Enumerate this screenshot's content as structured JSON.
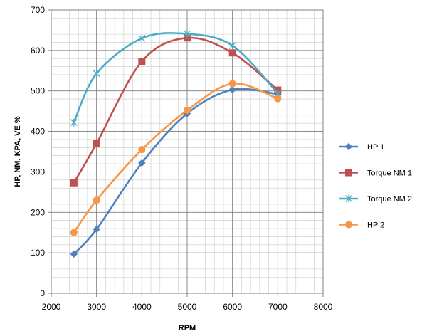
{
  "chart_data": {
    "type": "line",
    "title": "",
    "xlabel": "RPM",
    "ylabel": "HP, NM, KPA, VE %",
    "xlim": [
      2000,
      8000
    ],
    "ylim": [
      0,
      700
    ],
    "xticks": [
      2000,
      3000,
      4000,
      5000,
      6000,
      7000,
      8000
    ],
    "yticks": [
      0,
      100,
      200,
      300,
      400,
      500,
      600,
      700
    ],
    "grid": true,
    "minor_grid": true,
    "legend_position": "right",
    "smooth": true,
    "series": [
      {
        "name": "HP 1",
        "color": "#4f81bd",
        "marker": "diamond",
        "x": [
          2500,
          3000,
          4000,
          5000,
          6000,
          7000
        ],
        "y": [
          97,
          158,
          322,
          444,
          503,
          492
        ]
      },
      {
        "name": "Torque NM 1",
        "color": "#c0504d",
        "marker": "square",
        "x": [
          2500,
          3000,
          4000,
          5000,
          6000,
          7000
        ],
        "y": [
          273,
          370,
          573,
          631,
          594,
          502
        ]
      },
      {
        "name": "Torque NM 2",
        "color": "#4bacc6",
        "marker": "star",
        "x": [
          2500,
          3000,
          4000,
          5000,
          6000,
          7000
        ],
        "y": [
          422,
          543,
          630,
          641,
          612,
          494
        ]
      },
      {
        "name": "HP 2",
        "color": "#f79646",
        "marker": "circle",
        "x": [
          2500,
          3000,
          4000,
          5000,
          6000,
          7000
        ],
        "y": [
          150,
          230,
          355,
          452,
          518,
          481
        ]
      }
    ]
  }
}
